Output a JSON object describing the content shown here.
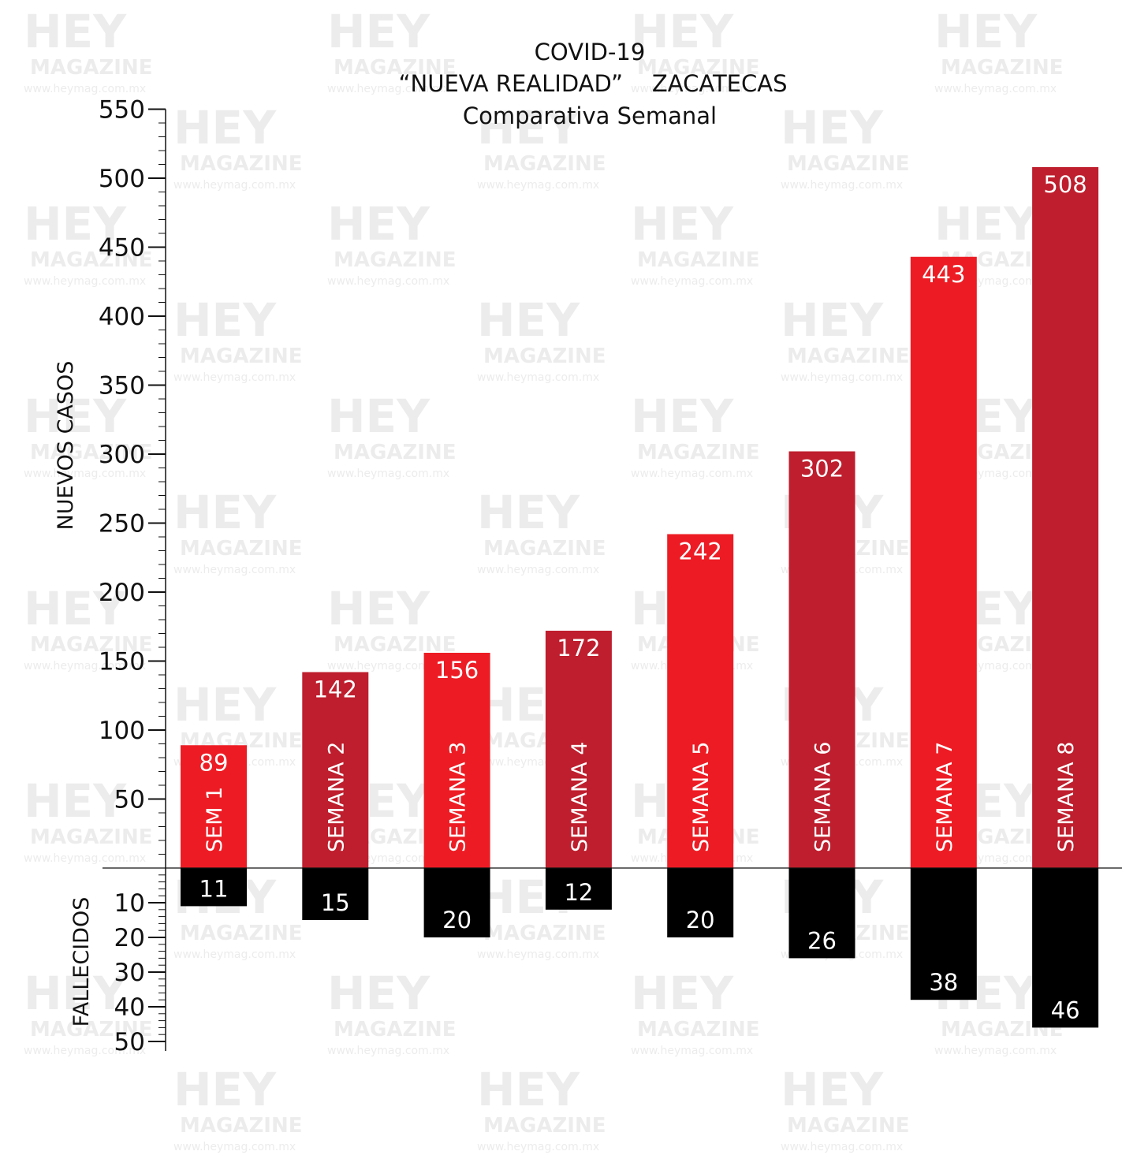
{
  "watermark": {
    "logo": "HEY",
    "sub": "MAGAZINE",
    "url": "www.heymag.com.mx"
  },
  "chart_data": {
    "type": "bar",
    "title": [
      "COVID-19",
      "“NUEVA REALIDAD”    ZACATECAS",
      "Comparativa Semanal"
    ],
    "categories": [
      "SEM 1",
      "SEMANA 2",
      "SEMANA 3",
      "SEMANA 4",
      "SEMANA 5",
      "SEMANA 6",
      "SEMANA 7",
      "SEMANA 8"
    ],
    "series": [
      {
        "name": "NUEVOS CASOS",
        "values": [
          89,
          142,
          156,
          172,
          242,
          302,
          443,
          508
        ],
        "colors": [
          "#ed1c24",
          "#be1e2d",
          "#ed1c24",
          "#be1e2d",
          "#ed1c24",
          "#be1e2d",
          "#ed1c24",
          "#be1e2d"
        ]
      },
      {
        "name": "FALLECIDOS",
        "values": [
          11,
          15,
          20,
          12,
          20,
          26,
          38,
          46
        ],
        "color": "#000000"
      }
    ],
    "y_top": {
      "label": "NUEVOS CASOS",
      "range": [
        0,
        550
      ],
      "ticks": [
        50,
        100,
        150,
        200,
        250,
        300,
        350,
        400,
        450,
        500,
        550
      ],
      "minor_step": 10
    },
    "y_bottom": {
      "label": "FALLECIDOS",
      "range": [
        0,
        50
      ],
      "ticks": [
        10,
        20,
        30,
        40,
        50
      ],
      "minor_step": 2
    },
    "grid": false,
    "legend": "none"
  }
}
